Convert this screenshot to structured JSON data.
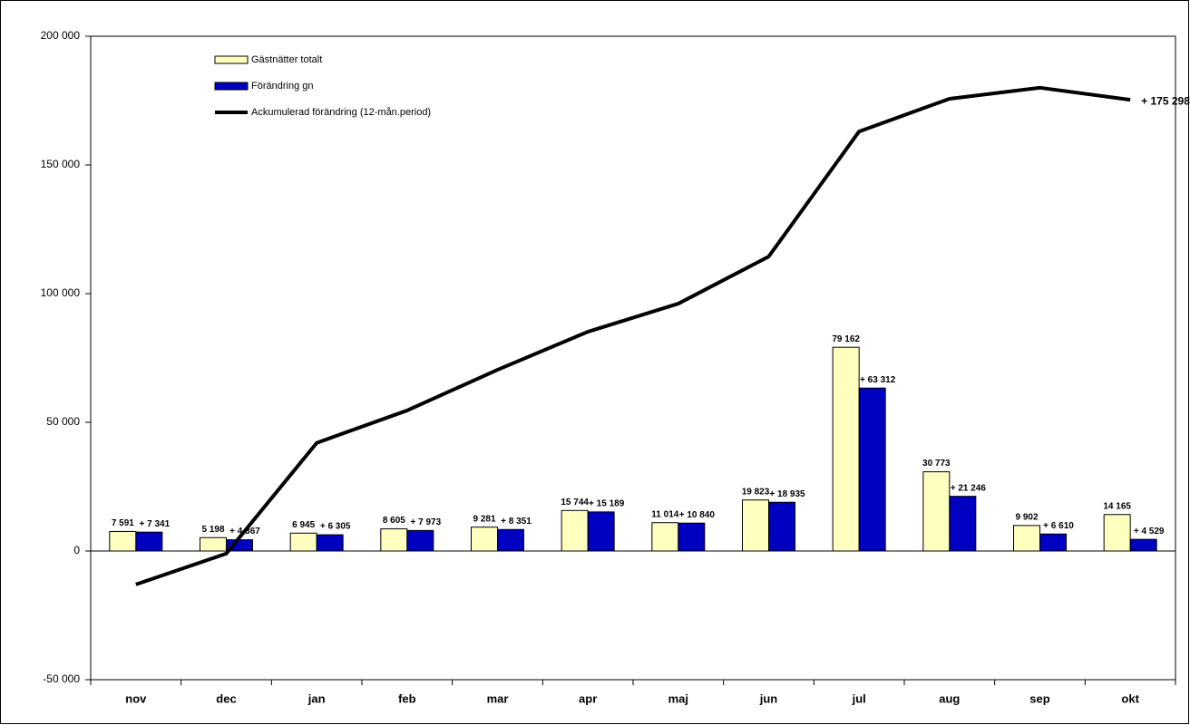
{
  "chart_data": {
    "type": "bar_line",
    "categories": [
      "nov",
      "dec",
      "jan",
      "feb",
      "mar",
      "apr",
      "maj",
      "jun",
      "jul",
      "aug",
      "sep",
      "okt"
    ],
    "series": [
      {
        "name": "Gästnätter totalt",
        "type": "bar",
        "color": "#ffffc0",
        "values": [
          7591,
          5198,
          6945,
          8605,
          9281,
          15744,
          11014,
          19823,
          79162,
          30773,
          9902,
          14165
        ],
        "value_labels": [
          "7 591",
          "5 198",
          "6 945",
          "8 605",
          "9 281",
          "15 744",
          "11 014",
          "19 823",
          "79 162",
          "30 773",
          "9 902",
          "14 165"
        ]
      },
      {
        "name": "Förändring gn",
        "type": "bar",
        "color": "#0000c0",
        "values": [
          7341,
          4367,
          6305,
          7973,
          8351,
          15189,
          10840,
          18935,
          63312,
          21246,
          6610,
          4529
        ],
        "value_labels": [
          "+ 7 341",
          "+ 4 367",
          "+ 6 305",
          "+ 7 973",
          "+ 8 351",
          "+ 15 189",
          "+ 10 840",
          "+ 18 935",
          "+ 63 312",
          "+ 21 246",
          "+ 6 610",
          "+ 4 529"
        ]
      },
      {
        "name": "Ackumulerad förändring (12-mån.period)",
        "type": "line",
        "color": "#000000",
        "values": [
          -13000,
          -1000,
          42000,
          54600,
          70400,
          85200,
          96100,
          114400,
          163000,
          175700,
          180000,
          175298
        ],
        "value_labels": [
          null,
          null,
          null,
          null,
          null,
          null,
          null,
          null,
          null,
          null,
          null,
          "+ 175 298"
        ]
      }
    ],
    "ylim": [
      -50000,
      200000
    ],
    "yticks": [
      {
        "value": -50000,
        "label": "-50 000"
      },
      0,
      {
        "value": 50000,
        "label": "50 000"
      },
      {
        "value": 100000,
        "label": "100 000"
      },
      {
        "value": 150000,
        "label": "150 000"
      },
      {
        "value": 200000,
        "label": "200 000"
      }
    ],
    "grid": false
  }
}
